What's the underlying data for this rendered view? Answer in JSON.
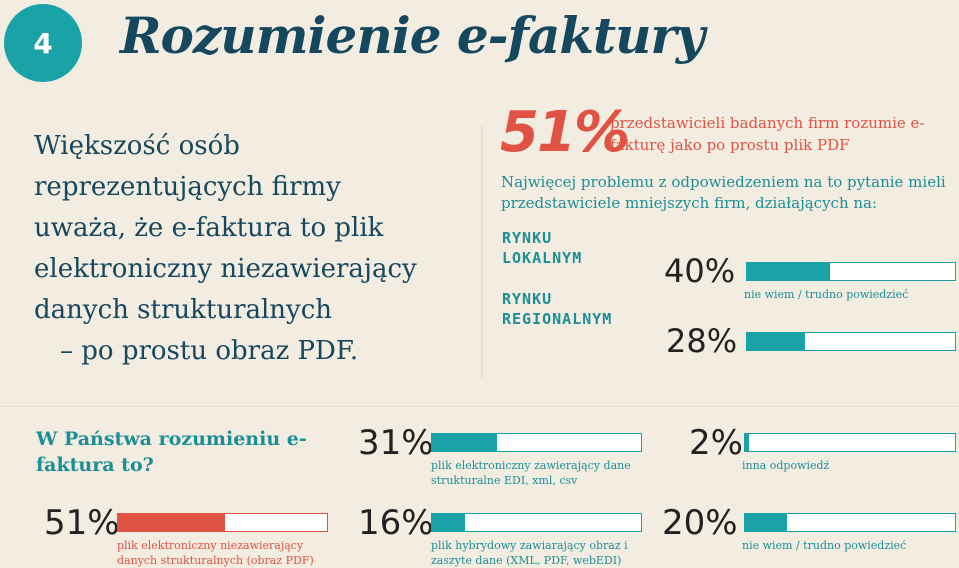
{
  "badge": "4",
  "title": "Rozumienie e-faktury",
  "intro": {
    "lines": [
      "Większość osób",
      "reprezentujących firmy",
      "uważa, że e-faktura to plik",
      "elektroniczny niezawierający",
      "danych strukturalnych",
      "– po prostu obraz PDF."
    ]
  },
  "highlight": {
    "percent": "51%",
    "caption": "przedstawicieli badanych firm rozumie e-fakturę jako po prostu plik PDF"
  },
  "problem": {
    "text": "Najwięcej problemu z odpowiedzeniem na to pytanie mieli przedstawiciele mniejszych firm, działających na:",
    "categories": [
      {
        "label_1": "RYNKU",
        "label_2": "LOKALNYM",
        "percent": "40%",
        "value": 0.4
      },
      {
        "label_1": "RYNKU",
        "label_2": "REGIONALNYM",
        "percent": "28%",
        "value": 0.28
      }
    ],
    "bar_note": "nie wiem / trudno powiedzieć"
  },
  "question": "W Państwa rozumieniu e-faktura to?",
  "answers": [
    {
      "percent": "51%",
      "value": 0.51,
      "label": "plik elektroniczny niezawierający danych strukturalnych (obraz PDF)",
      "color": "#e05243"
    },
    {
      "percent": "31%",
      "value": 0.31,
      "label": "plik elektroniczny zawierający dane strukturalne EDI, xml, csv",
      "color": "#1aa3a6"
    },
    {
      "percent": "16%",
      "value": 0.16,
      "label": "plik hybrydowy zawiarający obraz i zaszyte dane (XML, PDF, webEDI)",
      "color": "#1aa3a6"
    },
    {
      "percent": "2%",
      "value": 0.02,
      "label": "inna odpowiedź",
      "color": "#1aa3a6"
    },
    {
      "percent": "20%",
      "value": 0.2,
      "label": "nie wiem / trudno powiedzieć",
      "color": "#1aa3a6"
    }
  ],
  "colors": {
    "teal": "#1aa3a6",
    "navy": "#15485e",
    "red": "#e05243",
    "background": "#f2ece1"
  }
}
